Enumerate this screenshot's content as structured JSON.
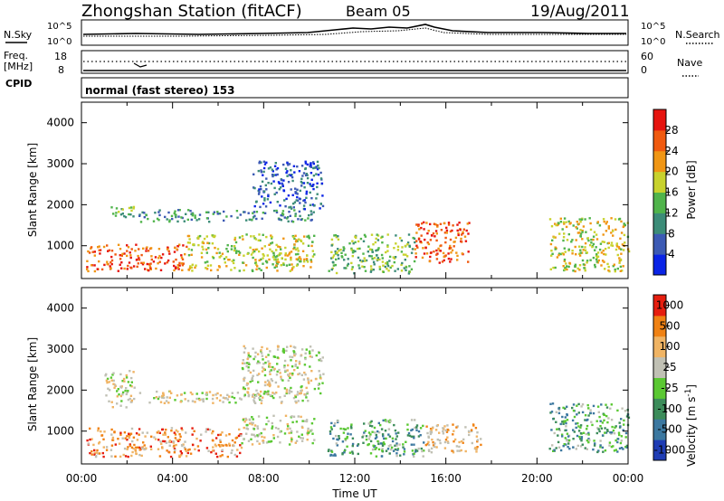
{
  "header": {
    "title": "Zhongshan Station (fitACF)",
    "beam": "Beam 05",
    "date": "19/Aug/2011"
  },
  "top_panels": {
    "nsky_label": "N.Sky",
    "nsky_ticks": [
      "10^5",
      "10^0"
    ],
    "nsearch_label": "N.Search",
    "nsearch_ticks": [
      "10^5",
      "10^0"
    ],
    "freq_label": "Freq.",
    "freq_unit": "[MHz]",
    "freq_ticks": [
      "18",
      "8"
    ],
    "nave_label": "Nave",
    "nave_ticks": [
      "60",
      "0"
    ],
    "cpid_label": "CPID",
    "cpid_value": "normal (fast stereo) 153"
  },
  "chart_data": [
    {
      "type": "heatmap",
      "title": "",
      "xlabel": "",
      "ylabel": "Slant Range [km]",
      "yticks": [
        "1000",
        "2000",
        "3000",
        "4000"
      ],
      "ylim": [
        200,
        4500
      ],
      "xlim": [
        0,
        24
      ],
      "colorbar": {
        "label": "Power [dB]",
        "ticks": [
          "4",
          "8",
          "12",
          "16",
          "20",
          "24",
          "28"
        ],
        "colors": [
          "#0a24e6",
          "#3c5ab4",
          "#3c8c78",
          "#50b44b",
          "#c8d22d",
          "#f09614",
          "#f05a0f",
          "#e6140f"
        ]
      },
      "scatter_regions": [
        {
          "t": [
            0.2,
            4.6
          ],
          "r": [
            400,
            1050
          ],
          "level": 6
        },
        {
          "t": [
            4.6,
            10.2
          ],
          "r": [
            400,
            1300
          ],
          "level": 4
        },
        {
          "t": [
            1.0,
            2.3
          ],
          "r": [
            1700,
            2000
          ],
          "level": 3
        },
        {
          "t": [
            2.5,
            10.2
          ],
          "r": [
            1600,
            1900
          ],
          "level": 2
        },
        {
          "t": [
            7.5,
            10.6
          ],
          "r": [
            1900,
            3100
          ],
          "level": 1
        },
        {
          "t": [
            10.8,
            14.6
          ],
          "r": [
            350,
            1300
          ],
          "level": 3
        },
        {
          "t": [
            14.6,
            17.0
          ],
          "r": [
            600,
            1600
          ],
          "level": 6
        },
        {
          "t": [
            20.5,
            24.0
          ],
          "r": [
            400,
            1700
          ],
          "level": 4
        }
      ]
    },
    {
      "type": "heatmap",
      "title": "",
      "xlabel": "Time UT",
      "ylabel": "Slant Range [km]",
      "yticks": [
        "1000",
        "2000",
        "3000",
        "4000"
      ],
      "xticks": [
        "00:00",
        "04:00",
        "08:00",
        "12:00",
        "16:00",
        "20:00",
        "00:00"
      ],
      "ylim": [
        200,
        4500
      ],
      "xlim": [
        0,
        24
      ],
      "colorbar": {
        "label": "Velocity [m s",
        "label_sup": "-1",
        "ticks": [
          "1000",
          "500",
          "100",
          "25",
          "-25",
          "-100",
          "-500",
          "-1000"
        ],
        "colors": [
          "#1e3cb4",
          "#3c78a0",
          "#3c8c5a",
          "#5ac832",
          "#c0c0b4",
          "#f0b464",
          "#f08214",
          "#e61e0f"
        ]
      },
      "scatter_regions": [
        {
          "t": [
            0.2,
            7.0
          ],
          "r": [
            400,
            1100
          ],
          "level": 6
        },
        {
          "t": [
            1.0,
            2.3
          ],
          "r": [
            1600,
            2500
          ],
          "level": 4
        },
        {
          "t": [
            2.5,
            10.2
          ],
          "r": [
            1700,
            2000
          ],
          "level": 4
        },
        {
          "t": [
            7.0,
            10.6
          ],
          "r": [
            1900,
            3100
          ],
          "level": 4
        },
        {
          "t": [
            7.0,
            10.2
          ],
          "r": [
            700,
            1400
          ],
          "level": 4
        },
        {
          "t": [
            10.8,
            15.0
          ],
          "r": [
            400,
            1300
          ],
          "level": 2
        },
        {
          "t": [
            15.0,
            17.5
          ],
          "r": [
            500,
            1200
          ],
          "level": 5
        },
        {
          "t": [
            20.5,
            24.0
          ],
          "r": [
            500,
            1700
          ],
          "level": 2
        }
      ]
    }
  ]
}
